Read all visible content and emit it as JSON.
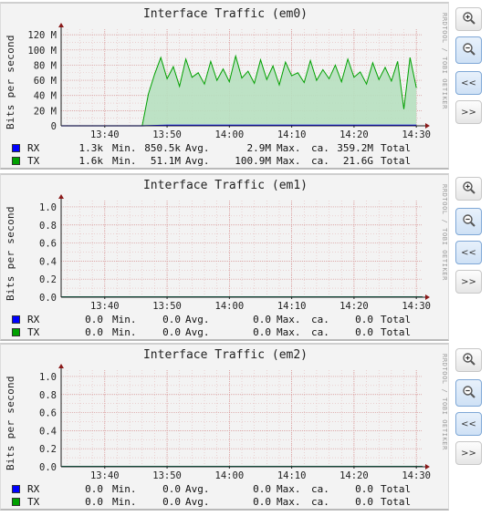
{
  "panels": [
    {
      "title": "Interface Traffic (em0)",
      "ylabel": "Bits per second",
      "credit": "RRDTOOL / TOBI OETIKER",
      "yticks": [
        "0",
        "20 M",
        "40 M",
        "60 M",
        "80 M",
        "100 M",
        "120 M"
      ],
      "xticks": [
        "13:40",
        "13:50",
        "14:00",
        "14:10",
        "14:20",
        "14:30"
      ],
      "legend": [
        {
          "name": "RX",
          "color": "#0000ff",
          "min": "1.3k",
          "min_label": "Min.",
          "avg": "850.5k",
          "avg_label": "Avg.",
          "max": "2.9M",
          "max_label": "Max.",
          "total_label": "ca.",
          "total": "359.2M",
          "total_suffix": "Total"
        },
        {
          "name": "TX",
          "color": "#00a000",
          "min": "1.6k",
          "min_label": "Min.",
          "avg": "51.1M",
          "avg_label": "Avg.",
          "max": "100.9M",
          "max_label": "Max.",
          "total_label": "ca.",
          "total": "21.6G",
          "total_suffix": "Total"
        }
      ]
    },
    {
      "title": "Interface Traffic (em1)",
      "ylabel": "Bits per second",
      "credit": "RRDTOOL / TOBI OETIKER",
      "yticks": [
        "0.0",
        "0.2",
        "0.4",
        "0.6",
        "0.8",
        "1.0"
      ],
      "xticks": [
        "13:40",
        "13:50",
        "14:00",
        "14:10",
        "14:20",
        "14:30"
      ],
      "legend": [
        {
          "name": "RX",
          "color": "#0000ff",
          "min": "0.0",
          "min_label": "Min.",
          "avg": "0.0",
          "avg_label": "Avg.",
          "max": "0.0",
          "max_label": "Max.",
          "total_label": "ca.",
          "total": "0.0",
          "total_suffix": "Total"
        },
        {
          "name": "TX",
          "color": "#00a000",
          "min": "0.0",
          "min_label": "Min.",
          "avg": "0.0",
          "avg_label": "Avg.",
          "max": "0.0",
          "max_label": "Max.",
          "total_label": "ca.",
          "total": "0.0",
          "total_suffix": "Total"
        }
      ]
    },
    {
      "title": "Interface Traffic (em2)",
      "ylabel": "Bits per second",
      "credit": "RRDTOOL / TOBI OETIKER",
      "yticks": [
        "0.0",
        "0.2",
        "0.4",
        "0.6",
        "0.8",
        "1.0"
      ],
      "xticks": [
        "13:40",
        "13:50",
        "14:00",
        "14:10",
        "14:20",
        "14:30"
      ],
      "legend": [
        {
          "name": "RX",
          "color": "#0000ff",
          "min": "0.0",
          "min_label": "Min.",
          "avg": "0.0",
          "avg_label": "Avg.",
          "max": "0.0",
          "max_label": "Max.",
          "total_label": "ca.",
          "total": "0.0",
          "total_suffix": "Total"
        },
        {
          "name": "TX",
          "color": "#00a000",
          "min": "0.0",
          "min_label": "Min.",
          "avg": "0.0",
          "avg_label": "Avg.",
          "max": "0.0",
          "max_label": "Max.",
          "total_label": "ca.",
          "total": "0.0",
          "total_suffix": "Total"
        }
      ]
    }
  ],
  "buttons": {
    "zoom_in_icon": "zoom-in-icon",
    "zoom_out_icon": "zoom-out-icon",
    "back_label": "<<",
    "forward_label": ">>"
  },
  "chart_data": [
    {
      "type": "area",
      "title": "Interface Traffic (em0)",
      "ylabel": "Bits per second",
      "x_ticks": [
        "13:40",
        "13:50",
        "14:00",
        "14:10",
        "14:20",
        "14:30"
      ],
      "x_range": [
        "13:33",
        "14:31"
      ],
      "ylim": [
        0,
        125000000
      ],
      "grid": true,
      "series": [
        {
          "name": "TX",
          "color": "#00a000",
          "fill": "#b7e0c0",
          "x": [
            "13:33",
            "13:46",
            "13:47",
            "13:48",
            "13:49",
            "13:50",
            "13:51",
            "13:52",
            "13:53",
            "13:54",
            "13:55",
            "13:56",
            "13:57",
            "13:58",
            "13:59",
            "14:00",
            "14:01",
            "14:02",
            "14:03",
            "14:04",
            "14:05",
            "14:06",
            "14:07",
            "14:08",
            "14:09",
            "14:10",
            "14:11",
            "14:12",
            "14:13",
            "14:14",
            "14:15",
            "14:16",
            "14:17",
            "14:18",
            "14:19",
            "14:20",
            "14:21",
            "14:22",
            "14:23",
            "14:24",
            "14:25",
            "14:26",
            "14:27",
            "14:28",
            "14:29",
            "14:30"
          ],
          "values": [
            0,
            0,
            42000000,
            68000000,
            90000000,
            62000000,
            78000000,
            52000000,
            88000000,
            64000000,
            70000000,
            55000000,
            85000000,
            60000000,
            75000000,
            58000000,
            92000000,
            63000000,
            72000000,
            56000000,
            87000000,
            61000000,
            79000000,
            54000000,
            84000000,
            66000000,
            70000000,
            57000000,
            86000000,
            60000000,
            74000000,
            62000000,
            80000000,
            58000000,
            88000000,
            64000000,
            71000000,
            55000000,
            83000000,
            61000000,
            77000000,
            59000000,
            85000000,
            22000000,
            90000000,
            50000000
          ]
        },
        {
          "name": "RX",
          "color": "#0000ff",
          "x": [
            "13:33",
            "13:46",
            "13:50",
            "14:00",
            "14:10",
            "14:20",
            "14:30"
          ],
          "values": [
            0,
            0,
            850000,
            900000,
            850000,
            800000,
            850000
          ]
        }
      ]
    },
    {
      "type": "area",
      "title": "Interface Traffic (em1)",
      "ylabel": "Bits per second",
      "x_ticks": [
        "13:40",
        "13:50",
        "14:00",
        "14:10",
        "14:20",
        "14:30"
      ],
      "ylim": [
        0,
        1.0
      ],
      "grid": true,
      "series": [
        {
          "name": "RX",
          "color": "#0000ff",
          "values": [
            0,
            0
          ]
        },
        {
          "name": "TX",
          "color": "#00a000",
          "values": [
            0,
            0
          ]
        }
      ]
    },
    {
      "type": "area",
      "title": "Interface Traffic (em2)",
      "ylabel": "Bits per second",
      "x_ticks": [
        "13:40",
        "13:50",
        "14:00",
        "14:10",
        "14:20",
        "14:30"
      ],
      "ylim": [
        0,
        1.0
      ],
      "grid": true,
      "series": [
        {
          "name": "RX",
          "color": "#0000ff",
          "values": [
            0,
            0
          ]
        },
        {
          "name": "TX",
          "color": "#00a000",
          "values": [
            0,
            0
          ]
        }
      ]
    }
  ]
}
